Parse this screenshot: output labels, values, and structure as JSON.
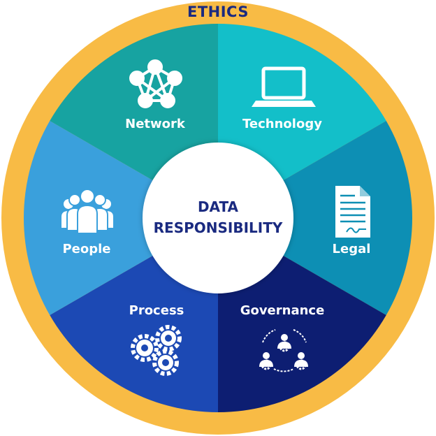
{
  "outer_ring": {
    "label": "ETHICS",
    "color": "#f8bb45"
  },
  "center": {
    "line1": "DATA",
    "line2": "RESPONSIBILITY"
  },
  "segments": [
    {
      "label": "Network",
      "icon": "network-icon",
      "color": "#17a3a1"
    },
    {
      "label": "Technology",
      "icon": "laptop-icon",
      "color": "#13bfc9"
    },
    {
      "label": "Legal",
      "icon": "document-icon",
      "color": "#0d8fb4"
    },
    {
      "label": "Governance",
      "icon": "governance-icon",
      "color": "#0d1e72"
    },
    {
      "label": "Process",
      "icon": "gears-icon",
      "color": "#1c49b4"
    },
    {
      "label": "People",
      "icon": "people-icon",
      "color": "#3aa0dc"
    }
  ]
}
